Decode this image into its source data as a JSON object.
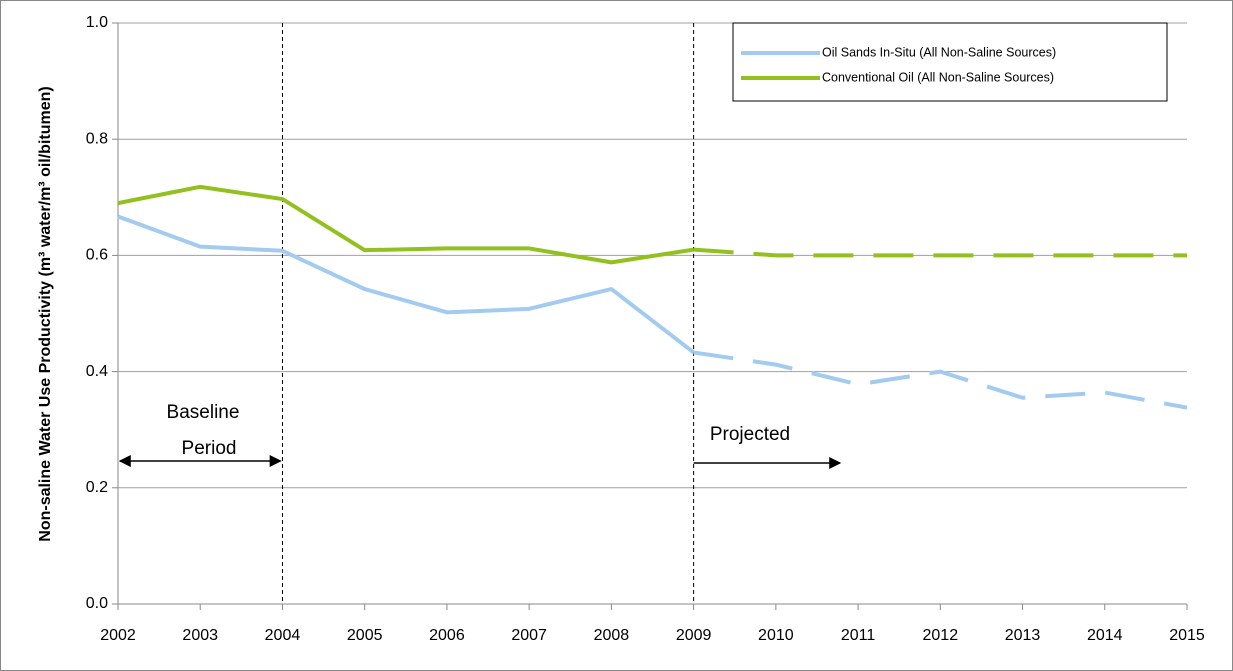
{
  "chart_data": {
    "type": "line",
    "x": [
      2002,
      2003,
      2004,
      2005,
      2006,
      2007,
      2008,
      2009,
      2010,
      2011,
      2012,
      2013,
      2014,
      2015
    ],
    "xlim": [
      2002,
      2015
    ],
    "xticks": [
      2002,
      2003,
      2004,
      2005,
      2006,
      2007,
      2008,
      2009,
      2010,
      2011,
      2012,
      2013,
      2014,
      2015
    ],
    "ylim": [
      0,
      1
    ],
    "yticks": [
      {
        "value": 0,
        "label": "0.0"
      },
      {
        "value": 0.2,
        "label": "0.2"
      },
      {
        "value": 0.4,
        "label": "0.4"
      },
      {
        "value": 0.6,
        "label": "0.6"
      },
      {
        "value": 0.8,
        "label": "0.8"
      },
      {
        "value": 1,
        "label": "1.0"
      }
    ],
    "ylabel": "Non-saline Water Use Productivity (m³ water/m³ oil/bitumen)",
    "grid": true,
    "legend": "top-right",
    "projection_start": 2009,
    "series": [
      {
        "name": "Oil Sands In-Situ (All Non-Saline Sources)",
        "color": "#a3cbf0",
        "values": [
          0.667,
          0.615,
          0.608,
          0.542,
          0.502,
          0.508,
          0.542,
          0.433,
          0.412,
          0.378,
          0.4,
          0.355,
          0.364,
          0.338
        ]
      },
      {
        "name": "Conventional Oil (All Non-Saline Sources)",
        "color": "#92c01f",
        "values": [
          0.69,
          0.718,
          0.697,
          0.609,
          0.612,
          0.612,
          0.588,
          0.61,
          0.6,
          0.6,
          0.6,
          0.6,
          0.6,
          0.6
        ]
      }
    ],
    "annotations": [
      {
        "text": "Baseline",
        "x": 2003
      },
      {
        "text": "Period",
        "x": 2003
      },
      {
        "text": "Projected",
        "x": 2009
      }
    ],
    "vlines": [
      2004,
      2009
    ]
  }
}
